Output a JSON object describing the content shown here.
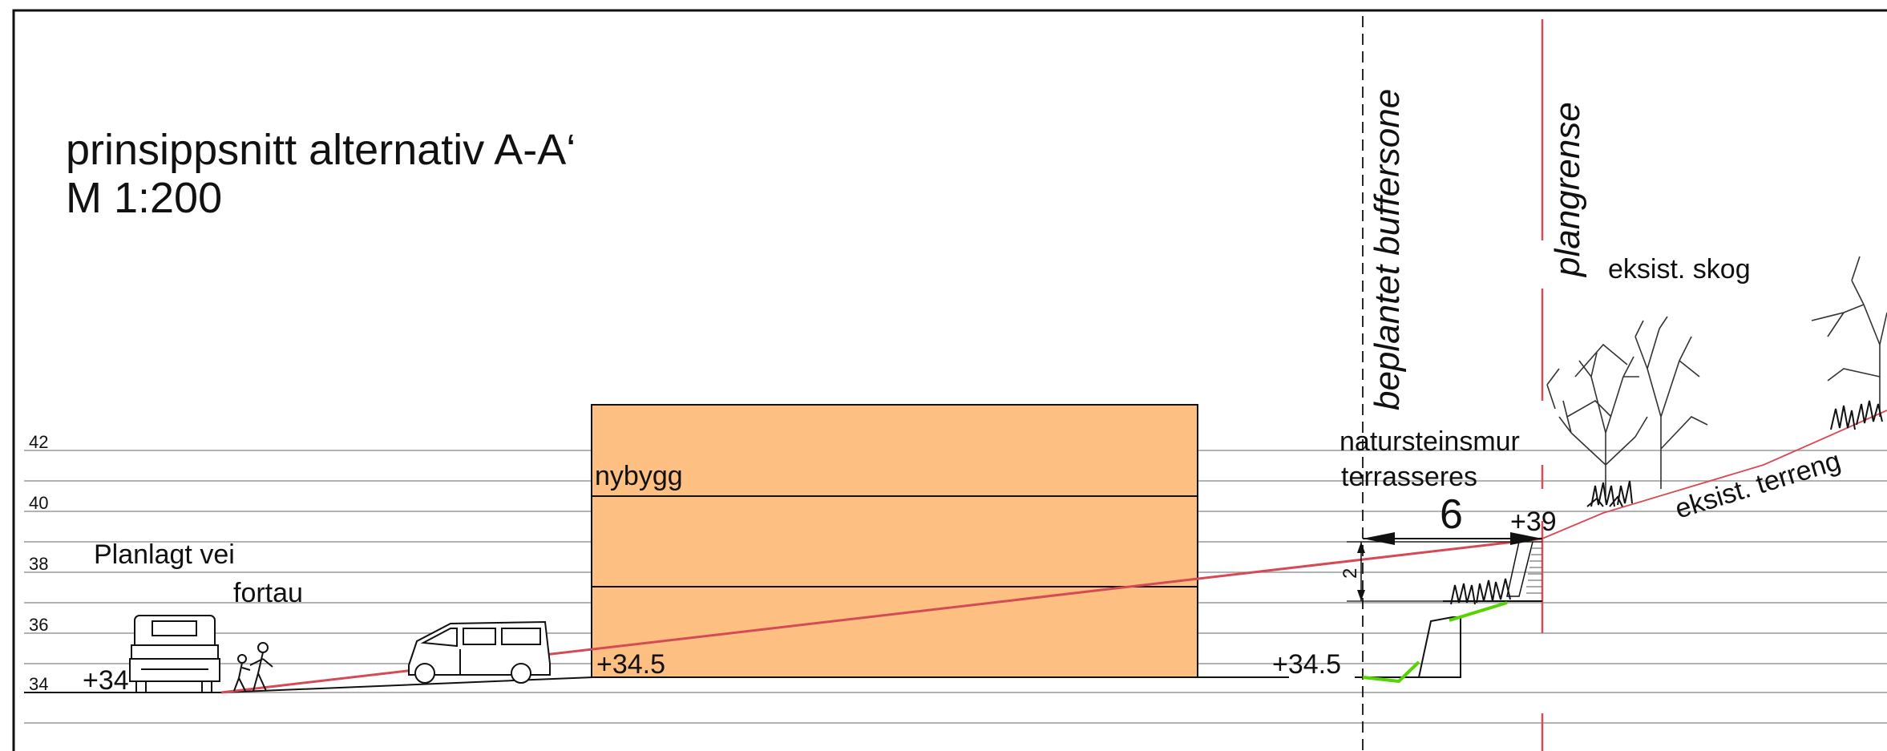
{
  "title": {
    "line1": "prinsippsnitt alternativ A-A‘",
    "line2": "M 1:200"
  },
  "levels": [
    "42",
    "40",
    "38",
    "36",
    "34"
  ],
  "labels": {
    "planned_road": "Planlagt vei",
    "sidewalk": "fortau",
    "building": "nybygg",
    "wall_line1": "natursteinsmur",
    "wall_line2": "terrasseres",
    "buffer_zone": "beplantet buffersone",
    "plan_boundary": "plangrense",
    "existing_forest": "eksist. skog",
    "existing_terrain": "eksist. terreng"
  },
  "elevations": {
    "road": "+34",
    "building_floor": "+34.5",
    "buffer_floor": "+34.5",
    "top_of_wall": "+39"
  },
  "dimensions": {
    "horizontal": "6",
    "vertical": "2"
  },
  "colors": {
    "building_fill": "#fdbf82",
    "terrain_line": "#d44a55",
    "planting_line": "#55d400",
    "grid": "#9a9a9a"
  },
  "icons": [
    "truck-icon",
    "pedestrians-icon",
    "van-icon",
    "tree-icon",
    "shrub-icon"
  ]
}
